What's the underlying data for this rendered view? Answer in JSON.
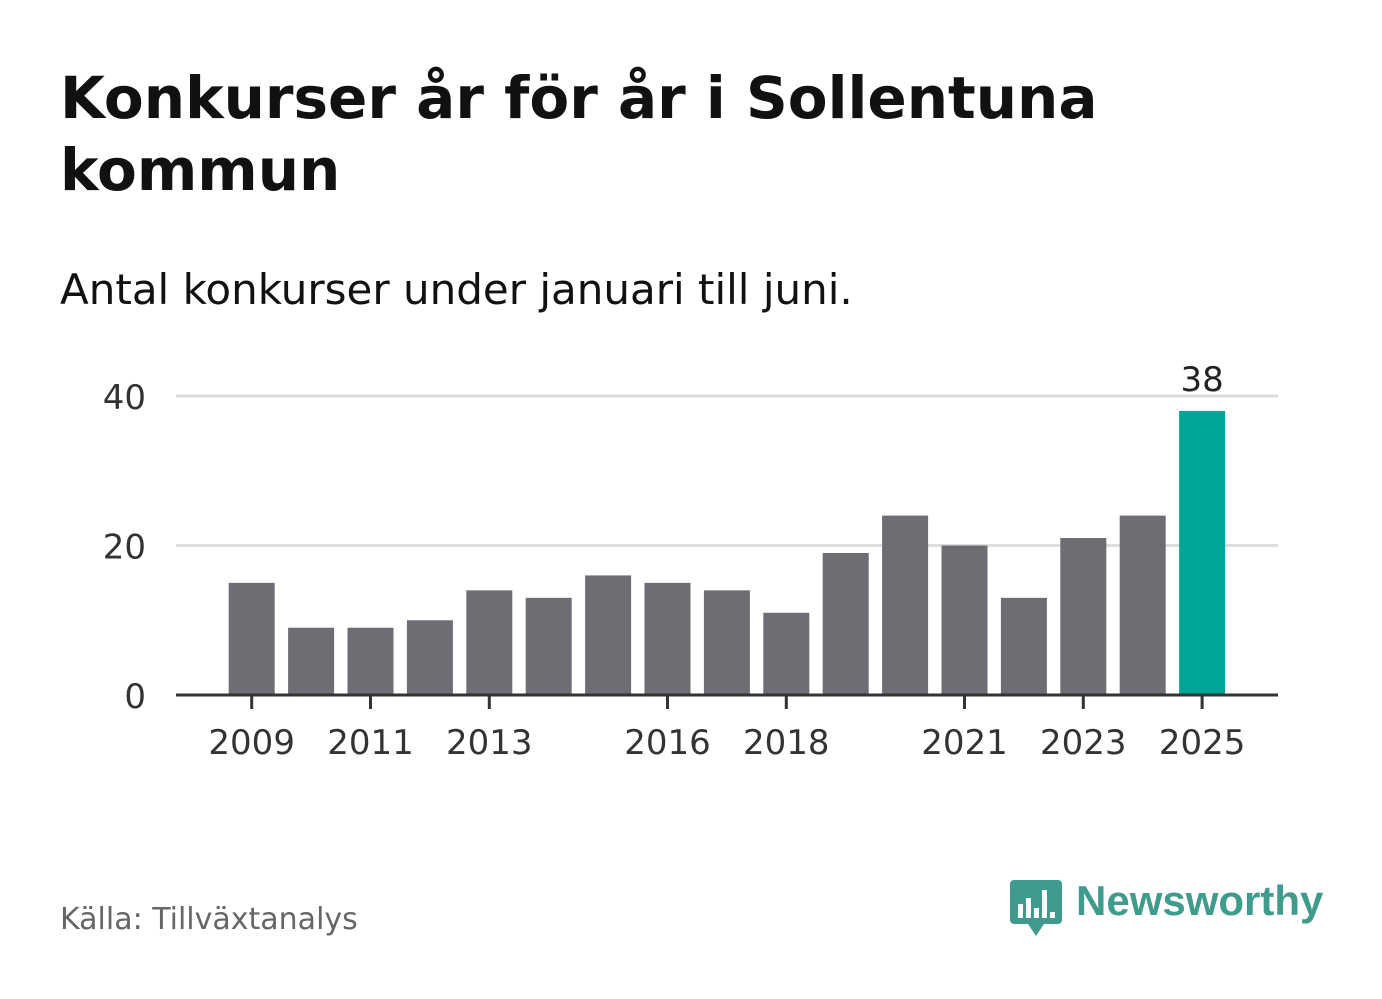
{
  "title": "Konkurser år för år i Sollentuna kommun",
  "subtitle": "Antal konkurser under januari till juni.",
  "source": "Källa: Tillväxtanalys",
  "brand": {
    "name": "Newsworthy",
    "icon": "newsworthy-bar-chart-speech-bubble-icon",
    "color": "#3f9b8c"
  },
  "colors": {
    "bar": "#6e6d73",
    "highlight": "#00a59a",
    "grid": "#dddddd",
    "axis": "#333333"
  },
  "chart_data": {
    "type": "bar",
    "categories": [
      "2009",
      "2010",
      "2011",
      "2012",
      "2013",
      "2014",
      "2015",
      "2016",
      "2017",
      "2018",
      "2019",
      "2020",
      "2021",
      "2022",
      "2023",
      "2024",
      "2025"
    ],
    "x_tick_labels": [
      "2009",
      "2011",
      "2013",
      "2016",
      "2018",
      "2021",
      "2023",
      "2025"
    ],
    "values": [
      15,
      9,
      9,
      10,
      14,
      13,
      16,
      15,
      14,
      11,
      19,
      24,
      20,
      13,
      21,
      24,
      38
    ],
    "highlight_category": "2025",
    "data_labels": [
      {
        "category": "2025",
        "text": "38"
      }
    ],
    "y_ticks": [
      0,
      20,
      40
    ],
    "ylim": [
      0,
      40
    ],
    "xlabel": "",
    "ylabel": "",
    "grid": true,
    "legend": "none"
  }
}
